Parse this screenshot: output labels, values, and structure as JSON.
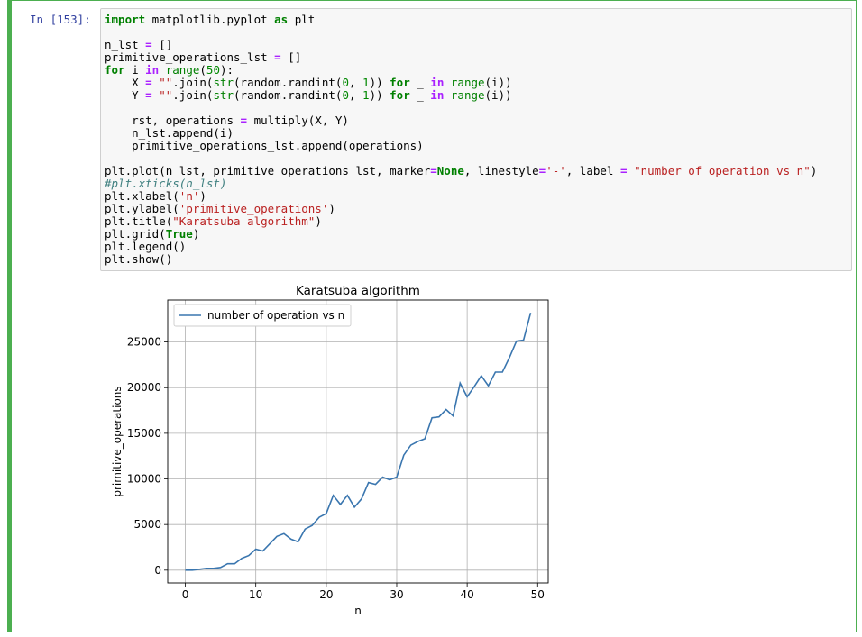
{
  "cell": {
    "prompt": "In [153]:",
    "code_lines": [
      [
        [
          "k",
          "import"
        ],
        [
          "t",
          " matplotlib.pyplot "
        ],
        [
          "k",
          "as"
        ],
        [
          "t",
          " plt"
        ]
      ],
      [],
      [
        [
          "t",
          "n_lst "
        ],
        [
          "o",
          "="
        ],
        [
          "t",
          " []"
        ]
      ],
      [
        [
          "t",
          "primitive_operations_lst "
        ],
        [
          "o",
          "="
        ],
        [
          "t",
          " []"
        ]
      ],
      [
        [
          "k",
          "for"
        ],
        [
          "t",
          " i "
        ],
        [
          "o",
          "in"
        ],
        [
          "t",
          " "
        ],
        [
          "n",
          "range"
        ],
        [
          "t",
          "("
        ],
        [
          "num",
          "50"
        ],
        [
          "t",
          "):"
        ]
      ],
      [
        [
          "t",
          "    X "
        ],
        [
          "o",
          "="
        ],
        [
          "t",
          " "
        ],
        [
          "s",
          "\"\""
        ],
        [
          "t",
          ".join("
        ],
        [
          "n",
          "str"
        ],
        [
          "t",
          "(random.randint("
        ],
        [
          "num",
          "0"
        ],
        [
          "t",
          ", "
        ],
        [
          "num",
          "1"
        ],
        [
          "t",
          ")) "
        ],
        [
          "k",
          "for"
        ],
        [
          "t",
          " _ "
        ],
        [
          "o",
          "in"
        ],
        [
          "t",
          " "
        ],
        [
          "n",
          "range"
        ],
        [
          "t",
          "(i))"
        ]
      ],
      [
        [
          "t",
          "    Y "
        ],
        [
          "o",
          "="
        ],
        [
          "t",
          " "
        ],
        [
          "s",
          "\"\""
        ],
        [
          "t",
          ".join("
        ],
        [
          "n",
          "str"
        ],
        [
          "t",
          "(random.randint("
        ],
        [
          "num",
          "0"
        ],
        [
          "t",
          ", "
        ],
        [
          "num",
          "1"
        ],
        [
          "t",
          ")) "
        ],
        [
          "k",
          "for"
        ],
        [
          "t",
          " _ "
        ],
        [
          "o",
          "in"
        ],
        [
          "t",
          " "
        ],
        [
          "n",
          "range"
        ],
        [
          "t",
          "(i))"
        ]
      ],
      [],
      [
        [
          "t",
          "    rst, operations "
        ],
        [
          "o",
          "="
        ],
        [
          "t",
          " multiply(X, Y)"
        ]
      ],
      [
        [
          "t",
          "    n_lst.append(i)"
        ]
      ],
      [
        [
          "t",
          "    primitive_operations_lst.append(operations)"
        ]
      ],
      [],
      [
        [
          "t",
          "plt.plot(n_lst, primitive_operations_lst, marker"
        ],
        [
          "o",
          "="
        ],
        [
          "k",
          "None"
        ],
        [
          "t",
          ", linestyle"
        ],
        [
          "o",
          "="
        ],
        [
          "s",
          "'-'"
        ],
        [
          "t",
          ", label "
        ],
        [
          "o",
          "="
        ],
        [
          "t",
          " "
        ],
        [
          "s",
          "\"number of operation vs n\""
        ],
        [
          "t",
          ")"
        ]
      ],
      [
        [
          "c",
          "#plt.xticks(n_lst)"
        ]
      ],
      [
        [
          "t",
          "plt.xlabel("
        ],
        [
          "s",
          "'n'"
        ],
        [
          "t",
          ")"
        ]
      ],
      [
        [
          "t",
          "plt.ylabel("
        ],
        [
          "s",
          "'primitive_operations'"
        ],
        [
          "t",
          ")"
        ]
      ],
      [
        [
          "t",
          "plt.title("
        ],
        [
          "s",
          "\"Karatsuba algorithm\""
        ],
        [
          "t",
          ")"
        ]
      ],
      [
        [
          "t",
          "plt.grid("
        ],
        [
          "k",
          "True"
        ],
        [
          "t",
          ")"
        ]
      ],
      [
        [
          "t",
          "plt.legend()"
        ]
      ],
      [
        [
          "t",
          "plt.show()"
        ]
      ]
    ]
  },
  "colors": {
    "cell_border": "#4caf50",
    "prompt": "#303f9f",
    "line": "#3a76af"
  },
  "chart_data": {
    "type": "line",
    "title": "Karatsuba algorithm",
    "xlabel": "n",
    "ylabel": "primitive_operations",
    "grid": true,
    "legend_position": "top-left",
    "xlim": [
      -2.5,
      51.5
    ],
    "ylim": [
      -1400,
      29600
    ],
    "xticks": [
      0,
      10,
      20,
      30,
      40,
      50
    ],
    "yticks": [
      0,
      5000,
      10000,
      15000,
      20000,
      25000
    ],
    "series": [
      {
        "name": "number of operation vs n",
        "x": [
          0,
          1,
          2,
          3,
          4,
          5,
          6,
          7,
          8,
          9,
          10,
          11,
          12,
          13,
          14,
          15,
          16,
          17,
          18,
          19,
          20,
          21,
          22,
          23,
          24,
          25,
          26,
          27,
          28,
          29,
          30,
          31,
          32,
          33,
          34,
          35,
          36,
          37,
          38,
          39,
          40,
          41,
          42,
          43,
          44,
          45,
          46,
          47,
          48,
          49
        ],
        "y": [
          0,
          0,
          100,
          200,
          200,
          300,
          700,
          700,
          1300,
          1600,
          2300,
          2100,
          2900,
          3700,
          4000,
          3400,
          3100,
          4500,
          4900,
          5800,
          6200,
          8200,
          7200,
          8200,
          6900,
          7800,
          9600,
          9400,
          10200,
          9900,
          10200,
          12600,
          13700,
          14100,
          14400,
          16700,
          16800,
          17600,
          16900,
          20500,
          19000,
          20100,
          21300,
          20200,
          21700,
          21700,
          23300,
          25100,
          25200,
          28200
        ]
      }
    ]
  }
}
